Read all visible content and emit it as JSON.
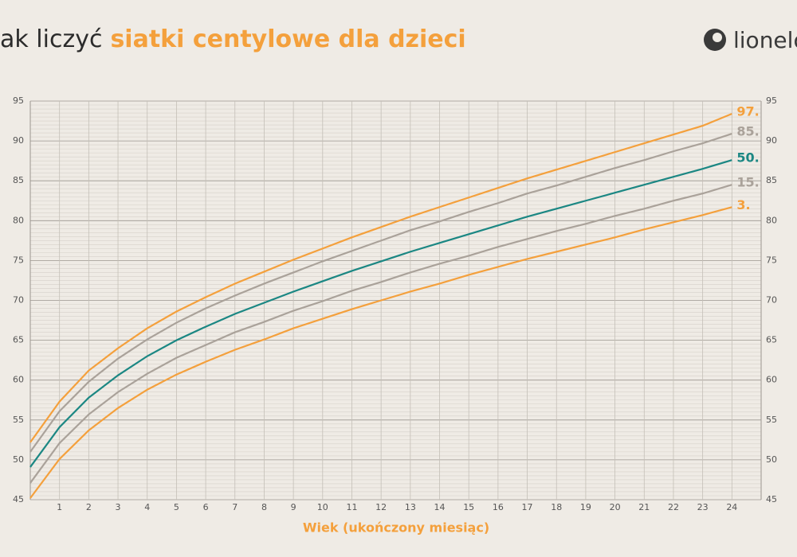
{
  "chart_data": {
    "type": "line",
    "title": "ak liczyć",
    "title_highlight": "siatki centylowe dla dzieci",
    "logo": "lionelo",
    "x_label": "Wiek (ukończony miesiąc)",
    "x": [
      0,
      1,
      2,
      3,
      4,
      5,
      6,
      7,
      8,
      9,
      10,
      11,
      12,
      13,
      14,
      15,
      16,
      17,
      18,
      19,
      20,
      21,
      22,
      23,
      24
    ],
    "series": [
      {
        "name": "97.",
        "color": "#f4a03c",
        "values": [
          52.2,
          57.3,
          61.2,
          64.0,
          66.5,
          68.6,
          70.4,
          72.1,
          73.6,
          75.1,
          76.5,
          77.9,
          79.2,
          80.5,
          81.7,
          82.9,
          84.1,
          85.3,
          86.4,
          87.5,
          88.6,
          89.7,
          90.8,
          91.9,
          93.4
        ]
      },
      {
        "name": "85.",
        "color": "#aaa29a",
        "values": [
          51.0,
          56.1,
          59.8,
          62.7,
          65.1,
          67.2,
          69.0,
          70.6,
          72.1,
          73.5,
          74.9,
          76.2,
          77.5,
          78.8,
          79.9,
          81.1,
          82.2,
          83.4,
          84.4,
          85.5,
          86.6,
          87.6,
          88.7,
          89.7,
          90.9
        ]
      },
      {
        "name": "50.",
        "color": "#1b8783",
        "values": [
          49.1,
          54.1,
          57.8,
          60.6,
          63.0,
          65.0,
          66.7,
          68.3,
          69.7,
          71.1,
          72.4,
          73.7,
          74.9,
          76.1,
          77.2,
          78.3,
          79.4,
          80.5,
          81.5,
          82.5,
          83.5,
          84.5,
          85.5,
          86.5,
          87.6
        ]
      },
      {
        "name": "15.",
        "color": "#aaa29a",
        "values": [
          47.1,
          52.1,
          55.7,
          58.5,
          60.8,
          62.8,
          64.4,
          66.0,
          67.3,
          68.7,
          69.9,
          71.2,
          72.3,
          73.5,
          74.6,
          75.6,
          76.7,
          77.7,
          78.7,
          79.6,
          80.6,
          81.5,
          82.5,
          83.4,
          84.5
        ]
      },
      {
        "name": "3.",
        "color": "#f4a03c",
        "values": [
          45.2,
          50.1,
          53.7,
          56.5,
          58.8,
          60.7,
          62.3,
          63.8,
          65.1,
          66.5,
          67.7,
          68.9,
          70.0,
          71.1,
          72.1,
          73.2,
          74.2,
          75.2,
          76.1,
          77.0,
          77.9,
          78.9,
          79.8,
          80.7,
          81.7
        ]
      }
    ],
    "xlim": [
      0,
      25
    ],
    "xticks": [
      1,
      2,
      3,
      4,
      5,
      6,
      7,
      8,
      9,
      10,
      11,
      12,
      13,
      14,
      15,
      16,
      17,
      18,
      19,
      20,
      21,
      22,
      23,
      24
    ],
    "ylim": [
      45,
      95
    ],
    "yticks": [
      45,
      50,
      55,
      60,
      65,
      70,
      75,
      80,
      85,
      90,
      95
    ],
    "grid": true
  }
}
